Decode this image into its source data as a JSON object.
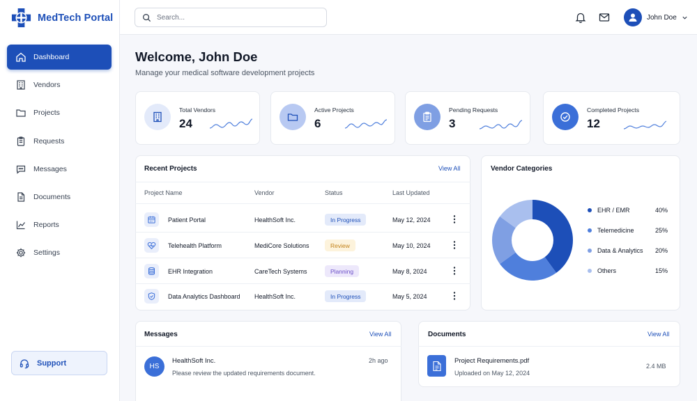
{
  "brand": {
    "name": "MedTech Portal",
    "accent": "#1d4fb8"
  },
  "sidebar": {
    "items": [
      {
        "label": "Dashboard",
        "icon": "home-icon",
        "active": true
      },
      {
        "label": "Vendors",
        "icon": "building-icon"
      },
      {
        "label": "Projects",
        "icon": "folder-icon"
      },
      {
        "label": "Requests",
        "icon": "clipboard-icon"
      },
      {
        "label": "Messages",
        "icon": "chat-icon"
      },
      {
        "label": "Documents",
        "icon": "document-icon"
      },
      {
        "label": "Reports",
        "icon": "chart-line-icon"
      },
      {
        "label": "Settings",
        "icon": "gear-icon"
      }
    ],
    "support_label": "Support"
  },
  "header": {
    "search_placeholder": "Search...",
    "user_name": "John Doe"
  },
  "welcome": {
    "title": "Welcome, John Doe",
    "subtitle": "Manage your medical software development projects"
  },
  "stats": [
    {
      "label": "Total Vendors",
      "value": "24",
      "icon": "building-icon"
    },
    {
      "label": "Active Projects",
      "value": "6",
      "icon": "folder-icon"
    },
    {
      "label": "Pending Requests",
      "value": "3",
      "icon": "clipboard-icon"
    },
    {
      "label": "Completed Projects",
      "value": "12",
      "icon": "check-circle-icon"
    }
  ],
  "recent_projects": {
    "title": "Recent Projects",
    "view_all": "View All",
    "columns": [
      "Project Name",
      "Vendor",
      "Status",
      "Last Updated"
    ],
    "rows": [
      {
        "name": "Patient Portal",
        "vendor": "HealthSoft Inc.",
        "status": "In Progress",
        "updated": "May 12, 2024",
        "icon": "calendar-icon"
      },
      {
        "name": "Telehealth Platform",
        "vendor": "MediCore Solutions",
        "status": "Review",
        "updated": "May 10, 2024",
        "icon": "heart-pulse-icon"
      },
      {
        "name": "EHR Integration",
        "vendor": "CareTech Systems",
        "status": "Planning",
        "updated": "May 8, 2024",
        "icon": "database-icon"
      },
      {
        "name": "Data Analytics Dashboard",
        "vendor": "HealthSoft Inc.",
        "status": "In Progress",
        "updated": "May 5, 2024",
        "icon": "shield-check-icon"
      }
    ]
  },
  "vendor_categories": {
    "title": "Vendor Categories",
    "items": [
      {
        "label": "EHR / EMR",
        "pct": "40%",
        "value": 40,
        "color": "#1d4fb8"
      },
      {
        "label": "Telemedicine",
        "pct": "25%",
        "value": 25,
        "color": "#4f7fdc"
      },
      {
        "label": "Data & Analytics",
        "pct": "20%",
        "value": 20,
        "color": "#7f9fe3"
      },
      {
        "label": "Others",
        "pct": "15%",
        "value": 15,
        "color": "#a9bfee"
      }
    ]
  },
  "messages": {
    "title": "Messages",
    "view_all": "View All",
    "items": [
      {
        "initials": "HS",
        "sender": "HealthSoft Inc.",
        "time": "2h ago",
        "text": "Please review the updated requirements document."
      }
    ]
  },
  "documents": {
    "title": "Documents",
    "view_all": "View All",
    "items": [
      {
        "name": "Project Requirements.pdf",
        "uploaded": "Uploaded on May 12, 2024",
        "size": "2.4 MB"
      }
    ]
  }
}
